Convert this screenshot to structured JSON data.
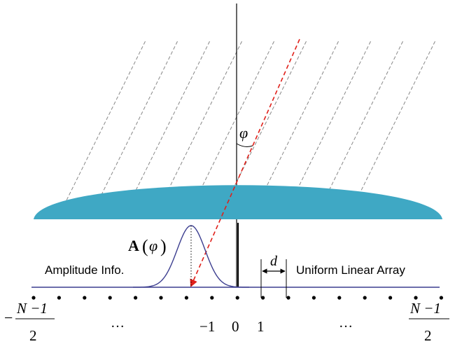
{
  "labels": {
    "phi": "φ",
    "amplitude_symbol": "A",
    "amplitude_arg": "φ",
    "amplitude_info": "Amplitude Info.",
    "spacing": "d",
    "array_name": "Uniform Linear Array"
  },
  "index_labels": {
    "left_sign": "−",
    "left_num": "N −1",
    "left_den": "2",
    "dots_left": "…",
    "minus_one": "−1",
    "zero": "0",
    "one": "1",
    "dots_right": "…",
    "right_num": "N −1",
    "right_den": "2"
  },
  "colors": {
    "lens": "#3fa8c4",
    "arrow": "#e0201a",
    "curve": "#3b3d8f",
    "wavefront": "#888888",
    "axis": "#000000"
  },
  "elements": {
    "count": 17
  }
}
